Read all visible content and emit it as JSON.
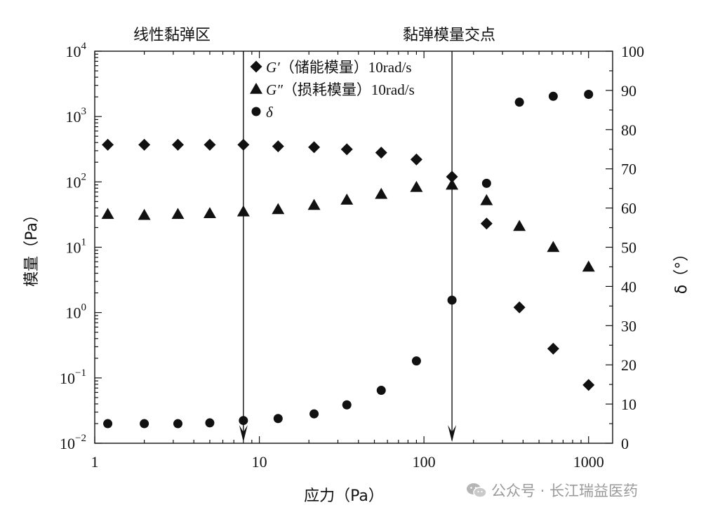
{
  "chart_data": {
    "type": "scatter",
    "x_axis": {
      "label": "应力（Pa）",
      "scale": "log",
      "range": [
        1,
        1400
      ],
      "ticks": [
        1,
        10,
        100,
        1000
      ],
      "tick_labels": [
        "1",
        "10",
        "100",
        "1000"
      ]
    },
    "y_axis_left": {
      "label": "模量（Pa）",
      "scale": "log",
      "range": [
        0.01,
        10000
      ],
      "ticks": [
        0.01,
        0.1,
        1,
        10,
        100,
        1000,
        10000
      ],
      "tick_exponents": [
        "−2",
        "−1",
        "0",
        "1",
        "2",
        "3",
        "4"
      ],
      "tick_base": "10"
    },
    "y_axis_right": {
      "label": "δ（°）",
      "scale": "linear",
      "range": [
        0,
        100
      ],
      "ticks": [
        0,
        10,
        20,
        30,
        40,
        50,
        60,
        70,
        80,
        90,
        100
      ],
      "tick_labels": [
        "0",
        "10",
        "20",
        "30",
        "40",
        "50",
        "60",
        "70",
        "80",
        "90",
        "100"
      ]
    },
    "series": [
      {
        "name_symbol": "G′",
        "name_cjk": "（储能模量）",
        "name_suffix": "10rad/s",
        "marker": "diamond",
        "axis": "left",
        "points": [
          [
            1.2,
            370
          ],
          [
            2,
            370
          ],
          [
            3.2,
            370
          ],
          [
            5,
            370
          ],
          [
            8,
            370
          ],
          [
            13,
            350
          ],
          [
            21.5,
            340
          ],
          [
            34,
            315
          ],
          [
            55,
            280
          ],
          [
            90,
            220
          ],
          [
            148,
            120
          ],
          [
            240,
            23
          ],
          [
            380,
            1.2
          ],
          [
            610,
            0.28
          ],
          [
            1000,
            0.078
          ]
        ]
      },
      {
        "name_symbol": "G″",
        "name_cjk": "（损耗模量）",
        "name_suffix": "10rad/s",
        "marker": "triangle",
        "axis": "left",
        "points": [
          [
            1.2,
            32
          ],
          [
            2,
            31
          ],
          [
            3.2,
            32
          ],
          [
            5,
            33
          ],
          [
            8,
            35
          ],
          [
            13,
            38
          ],
          [
            21.5,
            44
          ],
          [
            34,
            53
          ],
          [
            55,
            65
          ],
          [
            90,
            83
          ],
          [
            148,
            90
          ],
          [
            240,
            52
          ],
          [
            380,
            21
          ],
          [
            610,
            10
          ],
          [
            1000,
            5
          ]
        ]
      },
      {
        "name_symbol": "δ",
        "marker": "circle",
        "axis": "right",
        "points": [
          [
            1.2,
            5
          ],
          [
            2,
            5
          ],
          [
            3.2,
            5
          ],
          [
            5,
            5.2
          ],
          [
            8,
            5.8
          ],
          [
            13,
            6.3
          ],
          [
            21.5,
            7.5
          ],
          [
            34,
            9.8
          ],
          [
            55,
            13.5
          ],
          [
            90,
            21
          ],
          [
            148,
            36.5
          ],
          [
            240,
            66.3
          ],
          [
            380,
            87
          ],
          [
            610,
            88.5
          ],
          [
            1000,
            89
          ]
        ]
      }
    ],
    "annotations": [
      {
        "text": "线性黏弹区",
        "x": 8
      },
      {
        "text": "黏弹模量交点",
        "x": 148
      }
    ],
    "grid": false,
    "legend_position": "top-center"
  },
  "watermark": {
    "text": "公众号 · 长江瑞益医药",
    "icon": "wechat-icon"
  }
}
